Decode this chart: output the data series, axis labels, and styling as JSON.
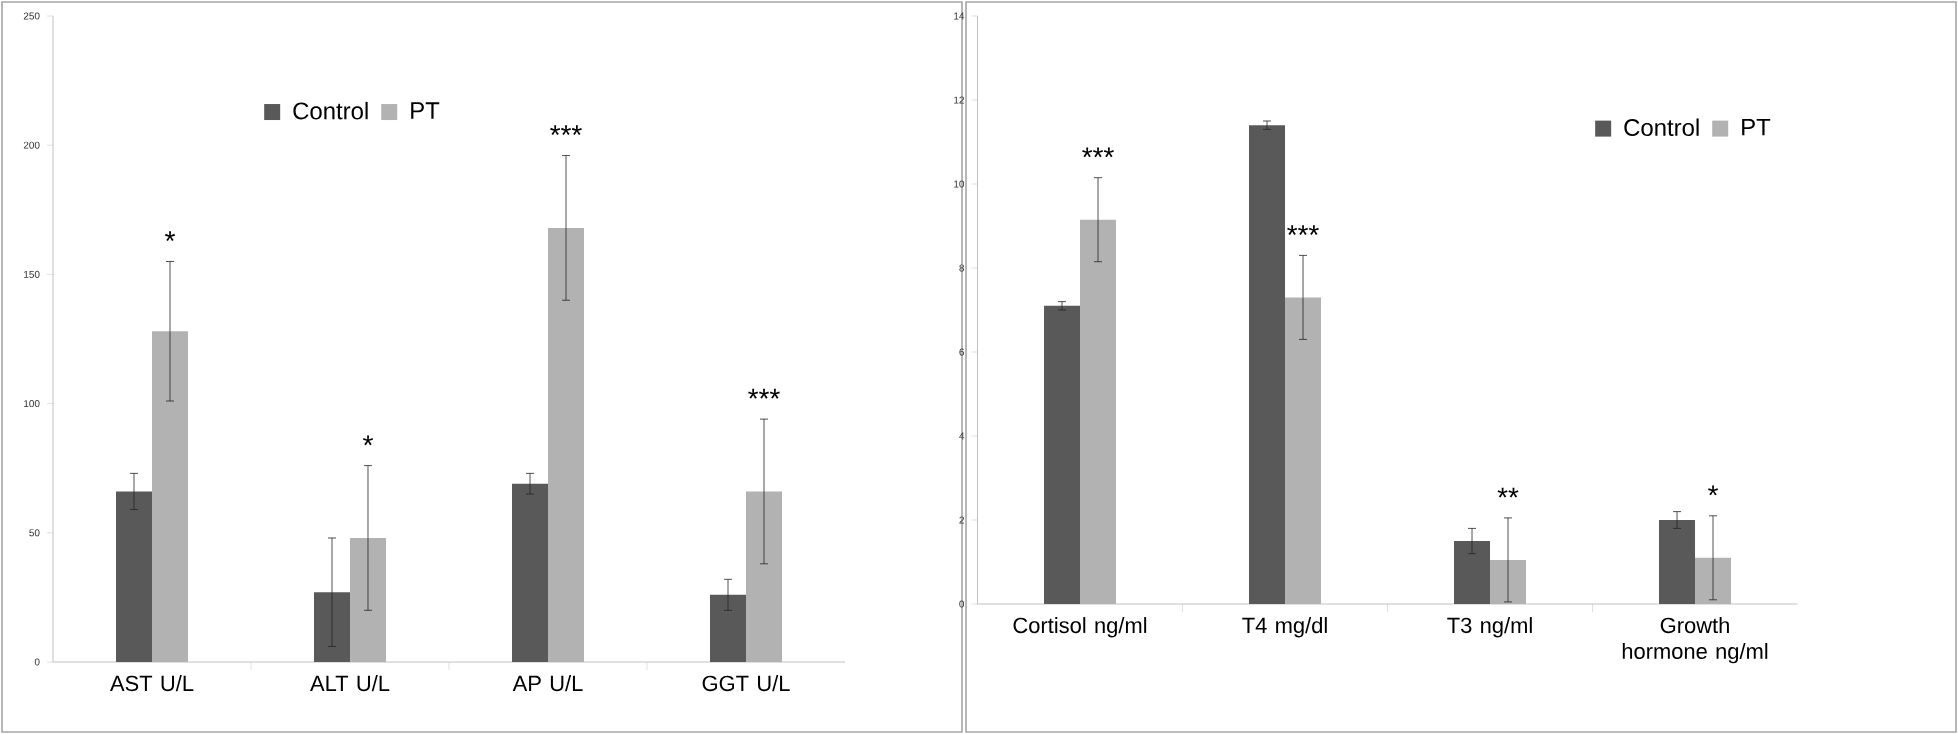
{
  "chart_data": [
    {
      "type": "bar",
      "categories": [
        "AST U/L",
        "ALT U/L",
        "AP U/L",
        "GGT U/L"
      ],
      "series": [
        {
          "name": "Control",
          "color": "#595959",
          "values": [
            66,
            27,
            69,
            26
          ],
          "errors": [
            7,
            21,
            4,
            6
          ]
        },
        {
          "name": "PT",
          "color": "#b2b2b2",
          "values": [
            128,
            48,
            168,
            66
          ],
          "errors": [
            27,
            28,
            28,
            28
          ]
        }
      ],
      "ylim": [
        0,
        250
      ],
      "yticks": [
        0,
        50,
        100,
        150,
        200,
        250
      ],
      "grid": false,
      "legend": "top",
      "annotations": [
        "*",
        "*",
        "***",
        "***"
      ]
    },
    {
      "type": "bar",
      "categories": [
        "Cortisol ng/ml",
        "T4 mg/dl",
        "T3 ng/ml",
        "Growth hormone ng/ml"
      ],
      "series": [
        {
          "name": "Control",
          "color": "#595959",
          "values": [
            7.1,
            11.4,
            1.5,
            2.0
          ],
          "errors": [
            0.1,
            0.1,
            0.3,
            0.2
          ]
        },
        {
          "name": "PT",
          "color": "#b2b2b2",
          "values": [
            9.15,
            7.3,
            1.05,
            1.1
          ],
          "errors": [
            1.0,
            1.0,
            1.0,
            1.0
          ]
        }
      ],
      "ylim": [
        0,
        14
      ],
      "yticks": [
        0,
        2,
        4,
        6,
        8,
        10,
        12,
        14
      ],
      "grid": false,
      "legend": "top right",
      "annotations": [
        "***",
        "***",
        "**",
        "*"
      ]
    }
  ]
}
